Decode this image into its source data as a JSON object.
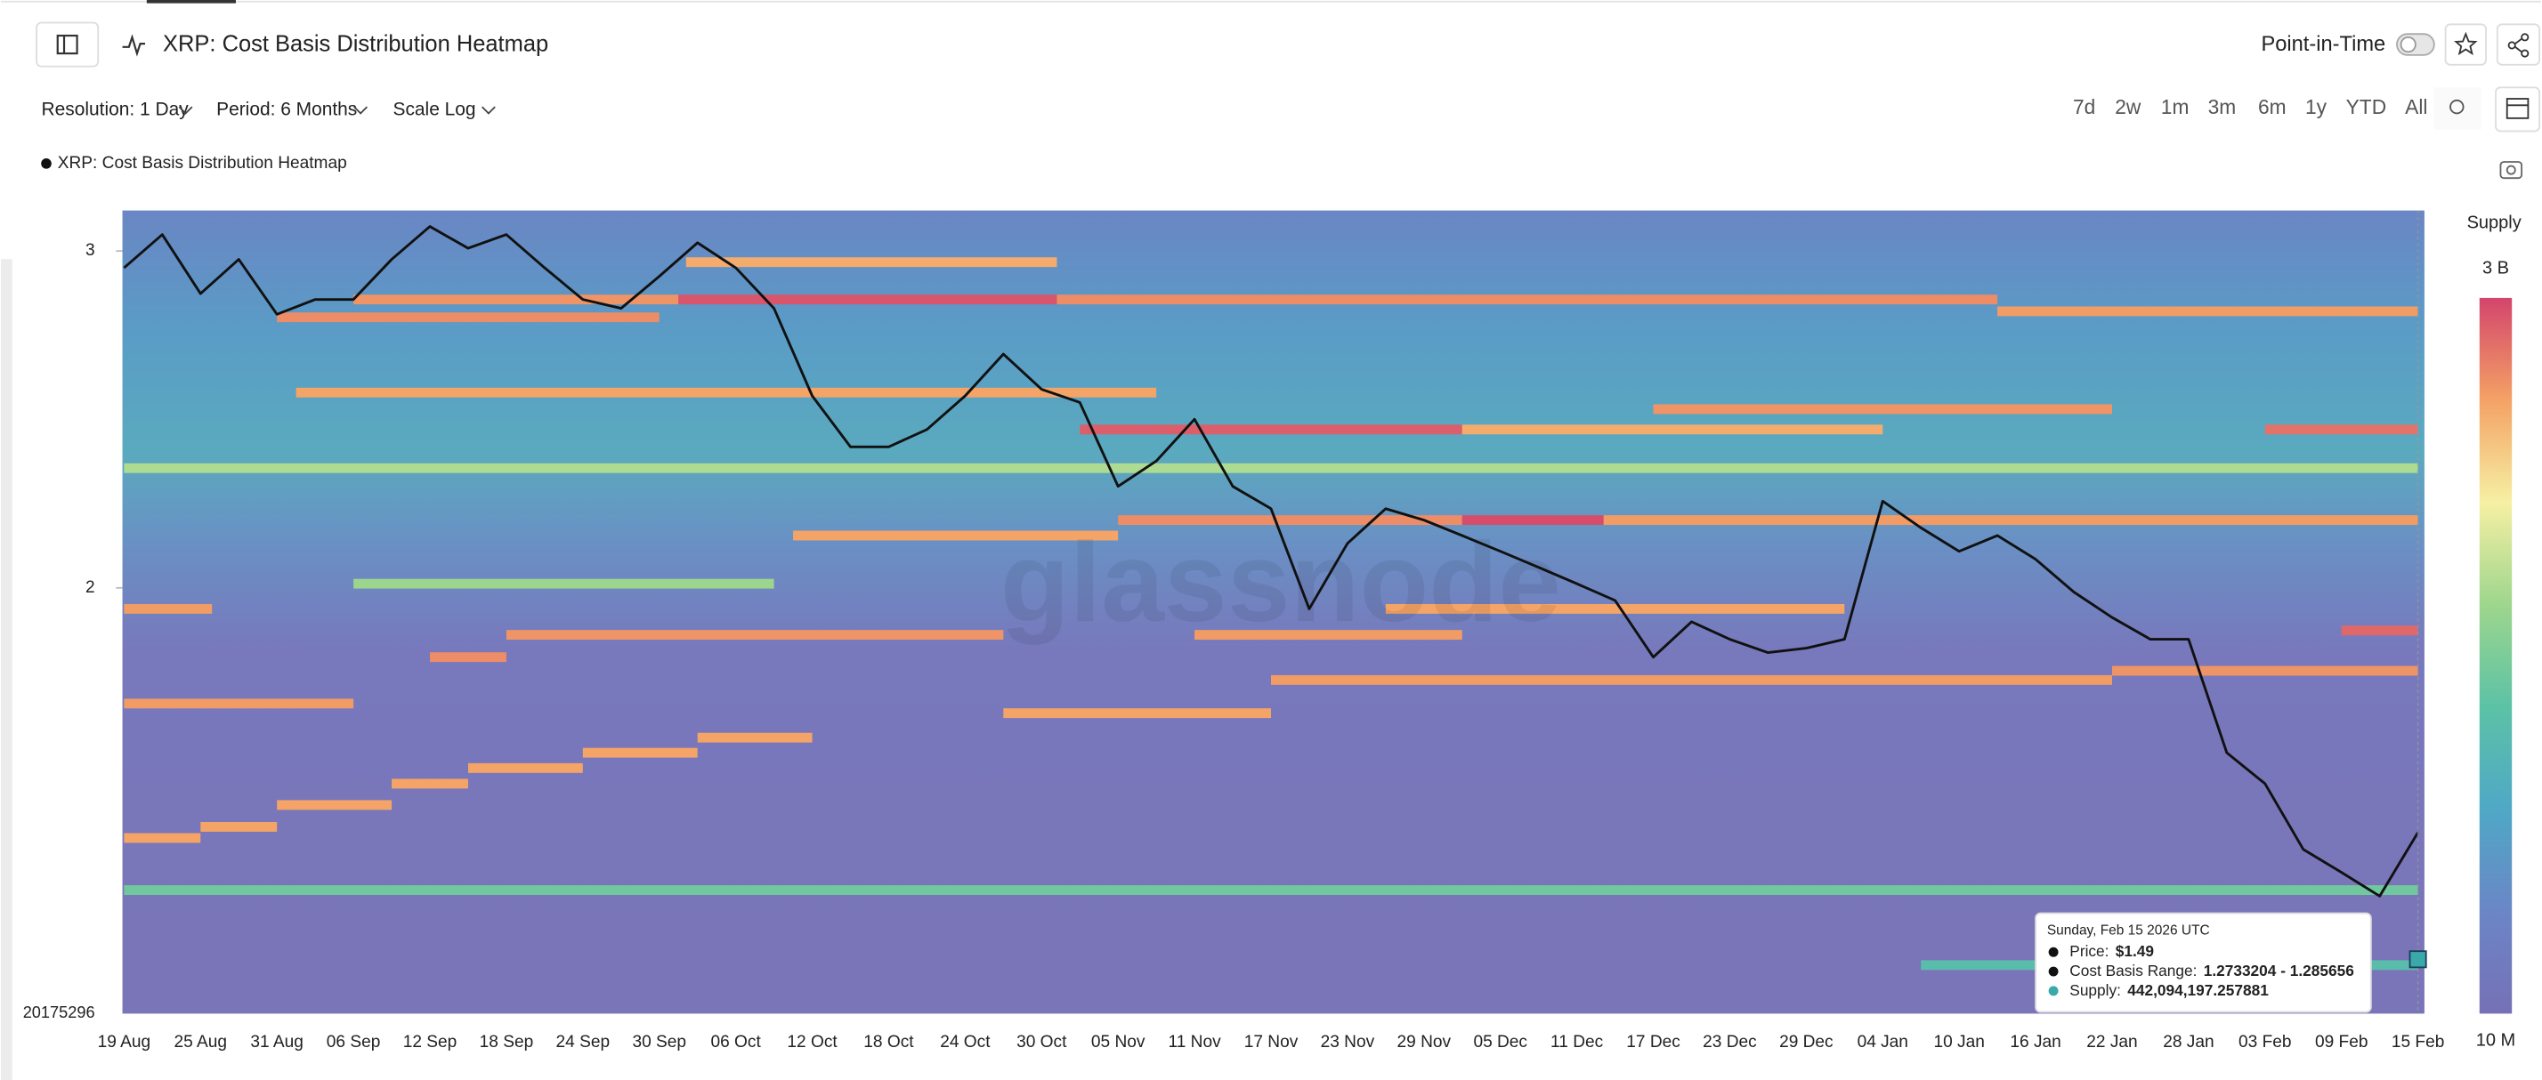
{
  "header": {
    "title": "XRP: Cost Basis Distribution Heatmap",
    "point_in_time": "Point-in-Time"
  },
  "toolbar": {
    "resolution": "Resolution: 1 Day",
    "period": "Period: 6 Months",
    "scale": "Scale Log",
    "ranges": [
      "7d",
      "2w",
      "1m",
      "3m",
      "6m",
      "1y",
      "YTD",
      "All"
    ]
  },
  "chart_data": {
    "type": "heatmap",
    "legend": "XRP: Cost Basis Distribution Heatmap",
    "watermark": "glassnode",
    "categories": [
      "19 Aug",
      null,
      "25 Aug",
      null,
      "31 Aug",
      null,
      "06 Sep",
      null,
      "12 Sep",
      null,
      "18 Sep",
      null,
      "24 Sep",
      null,
      "30 Sep",
      null,
      "06 Oct",
      null,
      "12 Oct",
      null,
      "18 Oct",
      null,
      "24 Oct",
      null,
      "30 Oct",
      null,
      "05 Nov",
      null,
      "11 Nov",
      null,
      "17 Nov",
      null,
      "23 Nov",
      null,
      "29 Nov",
      null,
      "05 Dec",
      null,
      "11 Dec",
      null,
      "17 Dec",
      null,
      "23 Dec",
      null,
      "29 Dec",
      null,
      "04 Jan",
      null,
      "10 Jan",
      null,
      "16 Jan",
      null,
      "22 Jan",
      null,
      "28 Jan",
      null,
      "03 Feb",
      null,
      "09 Feb",
      null,
      "15 Feb"
    ],
    "log_scale": true,
    "ylim": [
      1.198,
      3.15
    ],
    "yticks": [
      3,
      2
    ],
    "y_bottom_label": "20175296",
    "series": [
      {
        "color": "#111111",
        "values": [
          2.94,
          3.06,
          2.85,
          2.97,
          2.78,
          2.83,
          2.83,
          2.97,
          3.09,
          3.01,
          3.06,
          2.94,
          2.83,
          2.8,
          2.91,
          3.03,
          2.94,
          2.8,
          2.52,
          2.37,
          2.37,
          2.42,
          2.52,
          2.65,
          2.54,
          2.5,
          2.26,
          2.33,
          2.45,
          2.26,
          2.2,
          1.95,
          2.11,
          2.2,
          2.17,
          2.13,
          2.09,
          2.05,
          2.01,
          1.97,
          1.84,
          1.92,
          1.88,
          1.85,
          1.86,
          1.88,
          2.22,
          2.15,
          2.09,
          2.13,
          2.07,
          1.99,
          1.93,
          1.88,
          1.88,
          1.64,
          1.58,
          1.46,
          1.42,
          1.38,
          1.49
        ]
      }
    ],
    "heatmap": {
      "title": "Supply",
      "clim": [
        10000000,
        3000000000
      ],
      "cticks": [
        {
          "value": 3000000000,
          "label": "3 B"
        },
        {
          "value": 10000000,
          "label": "10 M"
        }
      ],
      "colorscale": [
        "#7670b6",
        "#6b86c6",
        "#4fa8c6",
        "#5cc2a6",
        "#9ed68d",
        "#f6f0a4",
        "#f4a265",
        "#d3456c"
      ],
      "bands": [
        {
          "price": 2.96,
          "start": 14.7,
          "end": 24.4,
          "supply": 1200000000
        },
        {
          "price": 2.83,
          "start": 6,
          "end": 14.5,
          "supply": 1500000000
        },
        {
          "price": 2.83,
          "start": 14.5,
          "end": 24.4,
          "supply": 2600000000
        },
        {
          "price": 2.83,
          "start": 24.4,
          "end": 49,
          "supply": 1600000000
        },
        {
          "price": 2.79,
          "start": 49,
          "end": 60,
          "supply": 1400000000
        },
        {
          "price": 2.77,
          "start": 4,
          "end": 14,
          "supply": 1600000000
        },
        {
          "price": 2.53,
          "start": 4.5,
          "end": 27,
          "supply": 1300000000
        },
        {
          "price": 2.48,
          "start": 40,
          "end": 52,
          "supply": 1500000000
        },
        {
          "price": 2.42,
          "start": 25,
          "end": 35,
          "supply": 2400000000
        },
        {
          "price": 2.42,
          "start": 35,
          "end": 46,
          "supply": 1200000000
        },
        {
          "price": 2.42,
          "start": 56,
          "end": 60,
          "supply": 2000000000
        },
        {
          "price": 2.31,
          "start": 0,
          "end": 60,
          "supply": 300000000
        },
        {
          "price": 2.17,
          "start": 26,
          "end": 35,
          "supply": 1600000000
        },
        {
          "price": 2.17,
          "start": 35,
          "end": 38.7,
          "supply": 2800000000
        },
        {
          "price": 2.17,
          "start": 38.7,
          "end": 60,
          "supply": 1400000000
        },
        {
          "price": 2.13,
          "start": 17.5,
          "end": 26,
          "supply": 1300000000
        },
        {
          "price": 2.01,
          "start": 6,
          "end": 17,
          "supply": 250000000
        },
        {
          "price": 1.95,
          "start": 0,
          "end": 2.3,
          "supply": 1400000000
        },
        {
          "price": 1.95,
          "start": 33,
          "end": 45,
          "supply": 1300000000
        },
        {
          "price": 1.89,
          "start": 10,
          "end": 23,
          "supply": 1500000000
        },
        {
          "price": 1.89,
          "start": 28,
          "end": 35,
          "supply": 1400000000
        },
        {
          "price": 1.9,
          "start": 58,
          "end": 60,
          "supply": 2200000000
        },
        {
          "price": 1.84,
          "start": 8,
          "end": 10,
          "supply": 1600000000
        },
        {
          "price": 1.79,
          "start": 30,
          "end": 52,
          "supply": 1400000000
        },
        {
          "price": 1.81,
          "start": 52,
          "end": 60,
          "supply": 1500000000
        },
        {
          "price": 1.74,
          "start": 0,
          "end": 6,
          "supply": 1400000000
        },
        {
          "price": 1.72,
          "start": 23,
          "end": 30,
          "supply": 1300000000
        },
        {
          "price": 1.67,
          "start": 15,
          "end": 18,
          "supply": 1300000000
        },
        {
          "price": 1.64,
          "start": 12,
          "end": 15,
          "supply": 1300000000
        },
        {
          "price": 1.61,
          "start": 9,
          "end": 12,
          "supply": 1300000000
        },
        {
          "price": 1.58,
          "start": 7,
          "end": 9,
          "supply": 1300000000
        },
        {
          "price": 1.54,
          "start": 4,
          "end": 7,
          "supply": 1300000000
        },
        {
          "price": 1.5,
          "start": 2,
          "end": 4,
          "supply": 1300000000
        },
        {
          "price": 1.48,
          "start": 0,
          "end": 2,
          "supply": 1300000000
        },
        {
          "price": 1.39,
          "start": 0,
          "end": 60,
          "supply": 150000000
        },
        {
          "price": 1.27,
          "start": 47,
          "end": 60,
          "supply": 100000000
        }
      ]
    },
    "tooltip": {
      "date": "Sunday, Feb 15 2026 UTC",
      "index": 60,
      "highlight_price": 1.279,
      "rows": [
        {
          "label": "Price:",
          "value": "$1.49",
          "color": "#111111"
        },
        {
          "label": "Cost Basis Range:",
          "value": "1.2733204 - 1.285656",
          "color": "#111111"
        },
        {
          "label": "Supply:",
          "value": "442,094,197.257881",
          "color": "#3aa9a9"
        }
      ]
    }
  }
}
